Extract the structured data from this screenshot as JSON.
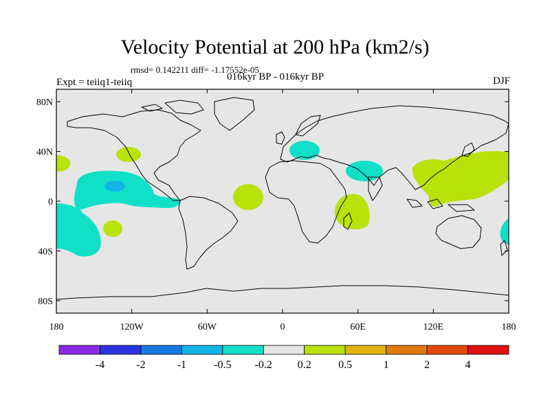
{
  "title": "Velocity Potential at 200 hPa (km2/s)",
  "rmsd_text": "rmsd= 0.142211 diff= -1.17552e-05",
  "subtitle": "016kyr BP - 016kyr BP",
  "left_label": "Expt = teiiq1-teiiq",
  "right_label": "DJF",
  "lat_ticks": [
    {
      "value": 80,
      "label": "80N"
    },
    {
      "value": 40,
      "label": "40N"
    },
    {
      "value": 0,
      "label": "0"
    },
    {
      "value": -40,
      "label": "40S"
    },
    {
      "value": -80,
      "label": "80S"
    }
  ],
  "lon_ticks": [
    {
      "value": -180,
      "label": "180"
    },
    {
      "value": -120,
      "label": "120W"
    },
    {
      "value": -60,
      "label": "60W"
    },
    {
      "value": 0,
      "label": "0"
    },
    {
      "value": 60,
      "label": "60E"
    },
    {
      "value": 120,
      "label": "120E"
    },
    {
      "value": 180,
      "label": "180"
    }
  ],
  "colorbar": {
    "colors": [
      "#8a2be2",
      "#2b33e0",
      "#1679e0",
      "#12b6e6",
      "#10e0c8",
      "#e6e6e6",
      "#b9e20a",
      "#e0b40a",
      "#e07a0a",
      "#e04a0a",
      "#e01010"
    ],
    "labels": [
      "-4",
      "-2",
      "-1",
      "-0.5",
      "-0.2",
      "0.2",
      "0.5",
      "1",
      "2",
      "4"
    ]
  },
  "colors": {
    "background_fill": "#e6e6e6",
    "negative_fill": "#10e0c8",
    "negative_strong_fill": "#12b6e6",
    "positive_fill": "#b9e20a",
    "coast": "#000000"
  }
}
